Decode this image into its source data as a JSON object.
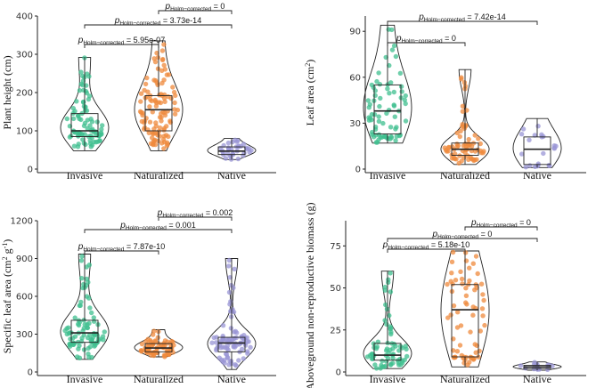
{
  "colors": {
    "Invasive": "#3fbf8f",
    "Naturalized": "#ef8a3c",
    "Native": "#9a96d6"
  },
  "chart_data": [
    {
      "type": "violin-box-jitter",
      "ylabel": "Plant height (cm)",
      "ylabel_sup": "",
      "ylabel_tail": "",
      "categories": [
        "Invasive",
        "Naturalized",
        "Native"
      ],
      "ylim": [
        0,
        400
      ],
      "yticks": [
        0,
        100,
        200,
        300,
        400
      ],
      "series": [
        {
          "name": "Invasive",
          "min": 48,
          "q1": 85,
          "median": 100,
          "q3": 145,
          "max": 292,
          "n": 90
        },
        {
          "name": "Naturalized",
          "min": 48,
          "q1": 100,
          "median": 155,
          "q3": 192,
          "max": 335,
          "n": 110
        },
        {
          "name": "Native",
          "min": 25,
          "q1": 38,
          "median": 47,
          "q3": 58,
          "max": 80,
          "n": 35
        }
      ],
      "comparisons": [
        {
          "from": 0,
          "to": 1,
          "label": "5.95e-07"
        },
        {
          "from": 0,
          "to": 2,
          "label": "3.73e-14"
        },
        {
          "from": 1,
          "to": 2,
          "label": "0"
        }
      ]
    },
    {
      "type": "violin-box-jitter",
      "ylabel": "Leaf area (cm",
      "ylabel_sup": "2",
      "ylabel_tail": ")",
      "categories": [
        "Invasive",
        "Naturalized",
        "Native"
      ],
      "ylim": [
        0,
        100
      ],
      "yticks": [
        0,
        30,
        60,
        90
      ],
      "series": [
        {
          "name": "Invasive",
          "min": 17,
          "q1": 23,
          "median": 38,
          "q3": 55,
          "max": 94,
          "n": 75
        },
        {
          "name": "Naturalized",
          "min": 3,
          "q1": 9,
          "median": 13,
          "q3": 17,
          "max": 65,
          "n": 70
        },
        {
          "name": "Native",
          "min": 1,
          "q1": 3,
          "median": 13,
          "q3": 21,
          "max": 33,
          "n": 22
        }
      ],
      "comparisons": [
        {
          "from": 0,
          "to": 1,
          "label": "0"
        },
        {
          "from": 0,
          "to": 2,
          "label": "7.42e-14"
        }
      ]
    },
    {
      "type": "violin-box-jitter",
      "ylabel": "Specific leaf area (cm",
      "ylabel_sup": "2",
      "ylabel_tail": " g",
      "ylabel_sup2": "-1",
      "ylabel_tail2": ")",
      "categories": [
        "Invasive",
        "Naturalized",
        "Native"
      ],
      "ylim": [
        0,
        1200
      ],
      "yticks": [
        0,
        300,
        600,
        900,
        1200
      ],
      "series": [
        {
          "name": "Invasive",
          "min": 100,
          "q1": 235,
          "median": 310,
          "q3": 410,
          "max": 935,
          "n": 90
        },
        {
          "name": "Naturalized",
          "min": 120,
          "q1": 160,
          "median": 190,
          "q3": 225,
          "max": 335,
          "n": 70
        },
        {
          "name": "Native",
          "min": 20,
          "q1": 160,
          "median": 230,
          "q3": 275,
          "max": 900,
          "n": 90
        }
      ],
      "comparisons": [
        {
          "from": 0,
          "to": 1,
          "label": "7.87e-10"
        },
        {
          "from": 0,
          "to": 2,
          "label": "0.001"
        },
        {
          "from": 1,
          "to": 2,
          "label": "0.002"
        }
      ]
    },
    {
      "type": "violin-box-jitter",
      "ylabel": "Aboveground non-reproductive biomass (g)",
      "ylabel_sup": "",
      "ylabel_tail": "",
      "categories": [
        "Invasive",
        "Naturalized",
        "Native"
      ],
      "ylim": [
        0,
        90
      ],
      "yticks": [
        0,
        25,
        50,
        75
      ],
      "series": [
        {
          "name": "Invasive",
          "min": 2,
          "q1": 7,
          "median": 10,
          "q3": 17,
          "max": 60,
          "n": 70
        },
        {
          "name": "Naturalized",
          "min": 3,
          "q1": 9,
          "median": 37,
          "q3": 52,
          "max": 72,
          "n": 70
        },
        {
          "name": "Native",
          "min": 1,
          "q1": 2,
          "median": 3,
          "q3": 4,
          "max": 6,
          "n": 15
        }
      ],
      "comparisons": [
        {
          "from": 0,
          "to": 1,
          "label": "5.18e-10"
        },
        {
          "from": 0,
          "to": 2,
          "label": "0"
        },
        {
          "from": 1,
          "to": 2,
          "label": "0"
        }
      ]
    }
  ],
  "sig_prefix": "p",
  "sig_subscript": "Holm−corrected",
  "sig_equals": " = "
}
